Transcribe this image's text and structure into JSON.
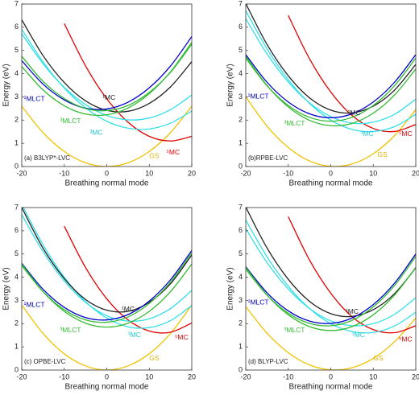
{
  "chart_data": [
    {
      "type": "line",
      "xlabel": "Breathing normal mode",
      "ylabel": "Energy (eV)",
      "annotation": "(a) B3LYP*-LVC",
      "xlim": [
        -20,
        20
      ],
      "ylim": [
        0,
        7
      ],
      "xticks": [
        -20,
        -10,
        0,
        10,
        20
      ],
      "yticks": [
        0,
        1,
        2,
        3,
        4,
        5,
        6,
        7
      ],
      "x": [
        -20,
        -15,
        -10,
        -5,
        0,
        5,
        10,
        15,
        20
      ],
      "series": [
        {
          "color": "#f2c200",
          "values": [
            2.6,
            1.46,
            0.65,
            0.16,
            0,
            0.16,
            0.65,
            1.46,
            2.6
          ]
        },
        {
          "color": "#e00000",
          "values": [
            null,
            null,
            6.16,
            4.34,
            2.92,
            1.91,
            1.3,
            1.1,
            1.3
          ]
        },
        {
          "color": "#33e0e8",
          "values": [
            5.91,
            4.51,
            3.38,
            2.53,
            1.95,
            1.65,
            1.62,
            1.87,
            2.39
          ]
        },
        {
          "color": "#33e0e8",
          "values": [
            5.72,
            4.43,
            3.41,
            2.67,
            2.2,
            2.01,
            2.09,
            2.45,
            3.08
          ]
        },
        {
          "color": "#222222",
          "values": [
            6.32,
            4.78,
            3.62,
            2.83,
            2.42,
            2.38,
            2.72,
            3.43,
            4.52
          ]
        },
        {
          "color": "#0000cc",
          "values": [
            4.56,
            3.55,
            2.87,
            2.51,
            2.48,
            2.77,
            3.39,
            4.33,
            5.6
          ]
        },
        {
          "color": "#33bb33",
          "values": [
            4.31,
            3.3,
            2.62,
            2.26,
            2.23,
            2.52,
            3.14,
            4.08,
            5.35
          ]
        },
        {
          "color": "#33bb33",
          "values": [
            4.75,
            3.67,
            2.93,
            2.5,
            2.41,
            2.63,
            3.19,
            4.06,
            5.27
          ]
        }
      ],
      "labels": [
        {
          "text": "¹MLCT",
          "x": -19.5,
          "y": 2.9,
          "color": "#0000cc"
        },
        {
          "text": "³MLCT",
          "x": -11,
          "y": 1.95,
          "color": "#33bb33"
        },
        {
          "text": "¹MC",
          "x": -1,
          "y": 2.95,
          "color": "#222222"
        },
        {
          "text": "³MC",
          "x": -4,
          "y": 1.45,
          "color": "#22c8d0"
        },
        {
          "text": "⁵MC",
          "x": 14,
          "y": 0.6,
          "color": "#e00000"
        },
        {
          "text": "GS",
          "x": 10,
          "y": 0.45,
          "color": "#e0b000"
        }
      ]
    },
    {
      "type": "line",
      "xlabel": "Breathing normal mode",
      "ylabel": "Energy (eV)",
      "annotation": "(b)RPBE-LVC",
      "xlim": [
        -20,
        20
      ],
      "ylim": [
        0,
        7
      ],
      "xticks": [
        -20,
        -10,
        0,
        10,
        20
      ],
      "yticks": [
        0,
        1,
        2,
        3,
        4,
        5,
        6,
        7
      ],
      "x": [
        -20,
        -15,
        -10,
        -5,
        0,
        5,
        10,
        15,
        20
      ],
      "series": [
        {
          "color": "#f2c200",
          "values": [
            3.0,
            1.74,
            0.82,
            0.24,
            0.01,
            0.11,
            0.55,
            1.33,
            2.45
          ]
        },
        {
          "color": "#e00000",
          "values": [
            null,
            null,
            6.51,
            4.64,
            3.21,
            2.2,
            1.64,
            1.51,
            1.81
          ]
        },
        {
          "color": "#33e0e8",
          "values": [
            6.71,
            5.07,
            3.74,
            2.72,
            2.0,
            1.6,
            1.51,
            1.72,
            2.25
          ]
        },
        {
          "color": "#33e0e8",
          "values": [
            6.37,
            4.85,
            3.64,
            2.74,
            2.15,
            1.87,
            1.91,
            2.25,
            2.9
          ]
        },
        {
          "color": "#222222",
          "values": [
            7.02,
            5.26,
            3.91,
            2.96,
            2.43,
            2.31,
            2.6,
            3.29,
            4.4
          ]
        },
        {
          "color": "#0000cc",
          "values": [
            4.82,
            3.63,
            2.78,
            2.27,
            2.1,
            2.27,
            2.78,
            3.63,
            4.82
          ]
        },
        {
          "color": "#33bb33",
          "values": [
            4.75,
            3.49,
            2.57,
            1.99,
            1.76,
            1.86,
            2.3,
            3.08,
            4.2
          ]
        },
        {
          "color": "#33bb33",
          "values": [
            4.67,
            3.48,
            2.63,
            2.12,
            1.95,
            2.12,
            2.63,
            3.48,
            4.67
          ]
        }
      ],
      "labels": [
        {
          "text": "¹MLCT",
          "x": -19.5,
          "y": 3.0,
          "color": "#0000cc"
        },
        {
          "text": "³MLCT",
          "x": -11,
          "y": 1.85,
          "color": "#33bb33"
        },
        {
          "text": "¹MC",
          "x": 4,
          "y": 2.3,
          "color": "#222222"
        },
        {
          "text": "³MC",
          "x": 7,
          "y": 1.4,
          "color": "#22c8d0"
        },
        {
          "text": "⁵MC",
          "x": 16,
          "y": 1.4,
          "color": "#e00000"
        },
        {
          "text": "GS",
          "x": 11,
          "y": 0.5,
          "color": "#e0b000"
        }
      ]
    },
    {
      "type": "line",
      "xlabel": "Breathing normal mode",
      "ylabel": "Energy (eV)",
      "annotation": "(c) OPBE-LVC",
      "xlim": [
        -20,
        20
      ],
      "ylim": [
        0,
        7
      ],
      "xticks": [
        -20,
        -10,
        0,
        10,
        20
      ],
      "yticks": [
        0,
        1,
        2,
        3,
        4,
        5,
        6,
        7
      ],
      "x": [
        -20,
        -15,
        -10,
        -5,
        0,
        5,
        10,
        15,
        20
      ],
      "series": [
        {
          "color": "#f2c200",
          "values": [
            2.8,
            1.58,
            0.7,
            0.18,
            0,
            0.18,
            0.7,
            1.58,
            2.8
          ]
        },
        {
          "color": "#e00000",
          "values": [
            null,
            null,
            6.2,
            4.42,
            3.07,
            2.16,
            1.68,
            1.63,
            2.03
          ]
        },
        {
          "color": "#33e0e8",
          "values": [
            7.13,
            5.4,
            4.0,
            2.95,
            2.24,
            1.86,
            1.83,
            2.13,
            2.78
          ]
        },
        {
          "color": "#33e0e8",
          "values": [
            6.7,
            5.1,
            3.84,
            2.92,
            2.34,
            2.11,
            2.21,
            2.65,
            3.43
          ]
        },
        {
          "color": "#222222",
          "values": [
            7.0,
            5.25,
            3.94,
            3.04,
            2.58,
            2.53,
            2.92,
            3.72,
            4.96
          ]
        },
        {
          "color": "#0000cc",
          "values": [
            4.6,
            3.48,
            2.7,
            2.26,
            2.16,
            2.39,
            2.97,
            3.89,
            5.15
          ]
        },
        {
          "color": "#33bb33",
          "values": [
            4.57,
            3.38,
            2.53,
            2.02,
            1.85,
            2.02,
            2.53,
            3.38,
            4.57
          ]
        },
        {
          "color": "#33bb33",
          "values": [
            4.5,
            3.38,
            2.6,
            2.16,
            2.06,
            2.29,
            2.87,
            3.79,
            5.05
          ]
        }
      ],
      "labels": [
        {
          "text": "¹MLCT",
          "x": -19.5,
          "y": 2.8,
          "color": "#0000cc"
        },
        {
          "text": "³MLCT",
          "x": -11,
          "y": 1.7,
          "color": "#33bb33"
        },
        {
          "text": "¹MC",
          "x": 3.5,
          "y": 2.6,
          "color": "#222222"
        },
        {
          "text": "³MC",
          "x": 5,
          "y": 1.5,
          "color": "#22c8d0"
        },
        {
          "text": "⁵MC",
          "x": 16,
          "y": 1.4,
          "color": "#e00000"
        },
        {
          "text": "GS",
          "x": 10,
          "y": 0.5,
          "color": "#e0b000"
        }
      ]
    },
    {
      "type": "line",
      "xlabel": "Breathing normal mode",
      "ylabel": "Energy (eV)",
      "annotation": "(d) BLYP-LVC",
      "xlim": [
        -20,
        20
      ],
      "ylim": [
        0,
        7
      ],
      "xticks": [
        -20,
        -10,
        0,
        10,
        20
      ],
      "yticks": [
        0,
        1,
        2,
        3,
        4,
        5,
        6,
        7
      ],
      "x": [
        -20,
        -15,
        -10,
        -5,
        0,
        5,
        10,
        15,
        20
      ],
      "series": [
        {
          "color": "#f2c200",
          "values": [
            2.73,
            1.59,
            0.75,
            0.22,
            0.01,
            0.1,
            0.5,
            1.22,
            2.24
          ]
        },
        {
          "color": "#e00000",
          "values": [
            null,
            null,
            6.61,
            4.74,
            3.31,
            2.3,
            1.74,
            1.61,
            1.91
          ]
        },
        {
          "color": "#33e0e8",
          "values": [
            6.46,
            4.88,
            3.61,
            2.65,
            2.0,
            1.66,
            1.62,
            1.9,
            2.49
          ]
        },
        {
          "color": "#33e0e8",
          "values": [
            6.09,
            4.63,
            3.49,
            2.65,
            2.12,
            1.91,
            2.0,
            2.4,
            3.12
          ]
        },
        {
          "color": "#222222",
          "values": [
            7.02,
            5.26,
            3.91,
            2.96,
            2.43,
            2.31,
            2.6,
            3.29,
            4.4
          ]
        },
        {
          "color": "#0000cc",
          "values": [
            4.45,
            3.33,
            2.55,
            2.11,
            2.01,
            2.24,
            2.82,
            3.74,
            5.0
          ]
        },
        {
          "color": "#33bb33",
          "values": [
            4.42,
            3.23,
            2.38,
            1.87,
            1.7,
            1.87,
            2.38,
            3.23,
            4.42
          ]
        },
        {
          "color": "#33bb33",
          "values": [
            4.35,
            3.23,
            2.45,
            2.01,
            1.91,
            2.14,
            2.72,
            3.64,
            4.9
          ]
        }
      ],
      "labels": [
        {
          "text": "¹MLCT",
          "x": -19.5,
          "y": 2.9,
          "color": "#0000cc"
        },
        {
          "text": "³MLCT",
          "x": -11,
          "y": 1.7,
          "color": "#33bb33"
        },
        {
          "text": "¹MC",
          "x": 3.5,
          "y": 2.5,
          "color": "#222222"
        },
        {
          "text": "³MC",
          "x": 5,
          "y": 1.5,
          "color": "#22c8d0"
        },
        {
          "text": "⁵MC",
          "x": 16,
          "y": 1.3,
          "color": "#e00000"
        },
        {
          "text": "GS",
          "x": 10,
          "y": 0.5,
          "color": "#e0b000"
        }
      ]
    }
  ]
}
